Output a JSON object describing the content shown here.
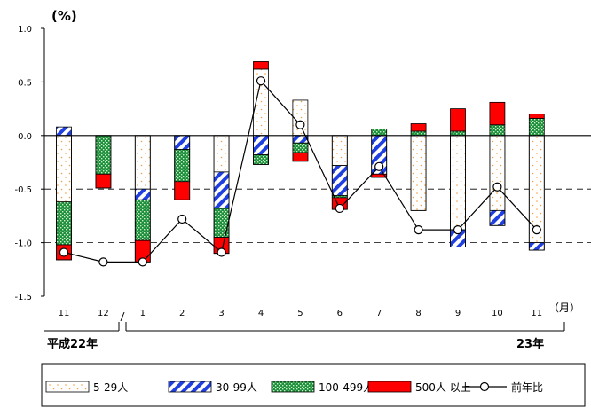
{
  "chart_data": {
    "type": "bar",
    "stacked": true,
    "title": "",
    "ylabel": "(%)",
    "xlabel_unit": "（月）",
    "ylim": [
      -1.5,
      1.0
    ],
    "yticks": [
      "1.0",
      "0.5",
      "0.0",
      "-0.5",
      "-1.0",
      "-1.5"
    ],
    "grid": "dashed",
    "categories": [
      "11",
      "12",
      "1",
      "2",
      "3",
      "4",
      "5",
      "6",
      "7",
      "8",
      "9",
      "10",
      "11"
    ],
    "year_labels": {
      "start": "平成22年",
      "end": "23年"
    },
    "series": [
      {
        "name": "5-29人",
        "color": "#ffffff",
        "pattern": "orange-dots",
        "values": [
          -0.62,
          0,
          -0.5,
          0,
          -0.34,
          0.62,
          0.33,
          -0.28,
          0,
          -0.7,
          -0.88,
          -0.7,
          -1.0
        ]
      },
      {
        "name": "30-99人",
        "color": "#1f3fe0",
        "pattern": "diagonal-stripes",
        "values": [
          0.08,
          0,
          -0.1,
          -0.13,
          -0.34,
          -0.18,
          -0.07,
          -0.28,
          -0.36,
          0.0,
          -0.16,
          -0.14,
          -0.07
        ]
      },
      {
        "name": "100-499人",
        "color": "#1d8f3a",
        "pattern": "crosshatch",
        "values": [
          -0.4,
          -0.36,
          -0.38,
          -0.3,
          -0.27,
          -0.09,
          -0.09,
          -0.02,
          0.06,
          0.04,
          0.04,
          0.1,
          0.16
        ]
      },
      {
        "name": "500人 以上",
        "color": "#ff0000",
        "pattern": "solid",
        "values": [
          -0.14,
          -0.13,
          -0.2,
          -0.17,
          -0.15,
          0.07,
          -0.08,
          -0.11,
          -0.03,
          0.07,
          0.21,
          0.21,
          0.04
        ]
      }
    ],
    "positive_lower_values": [
      0.08,
      0,
      0,
      0,
      0,
      0,
      0,
      0,
      0.06,
      0.04,
      0.04,
      0.1,
      0.16
    ],
    "line": {
      "name": "前年比",
      "values": [
        -1.09,
        -1.18,
        -1.18,
        -0.78,
        -1.09,
        0.51,
        0.1,
        -0.68,
        -0.29,
        -0.88,
        -0.88,
        -0.48,
        -0.88
      ]
    },
    "legend_position": "bottom"
  }
}
